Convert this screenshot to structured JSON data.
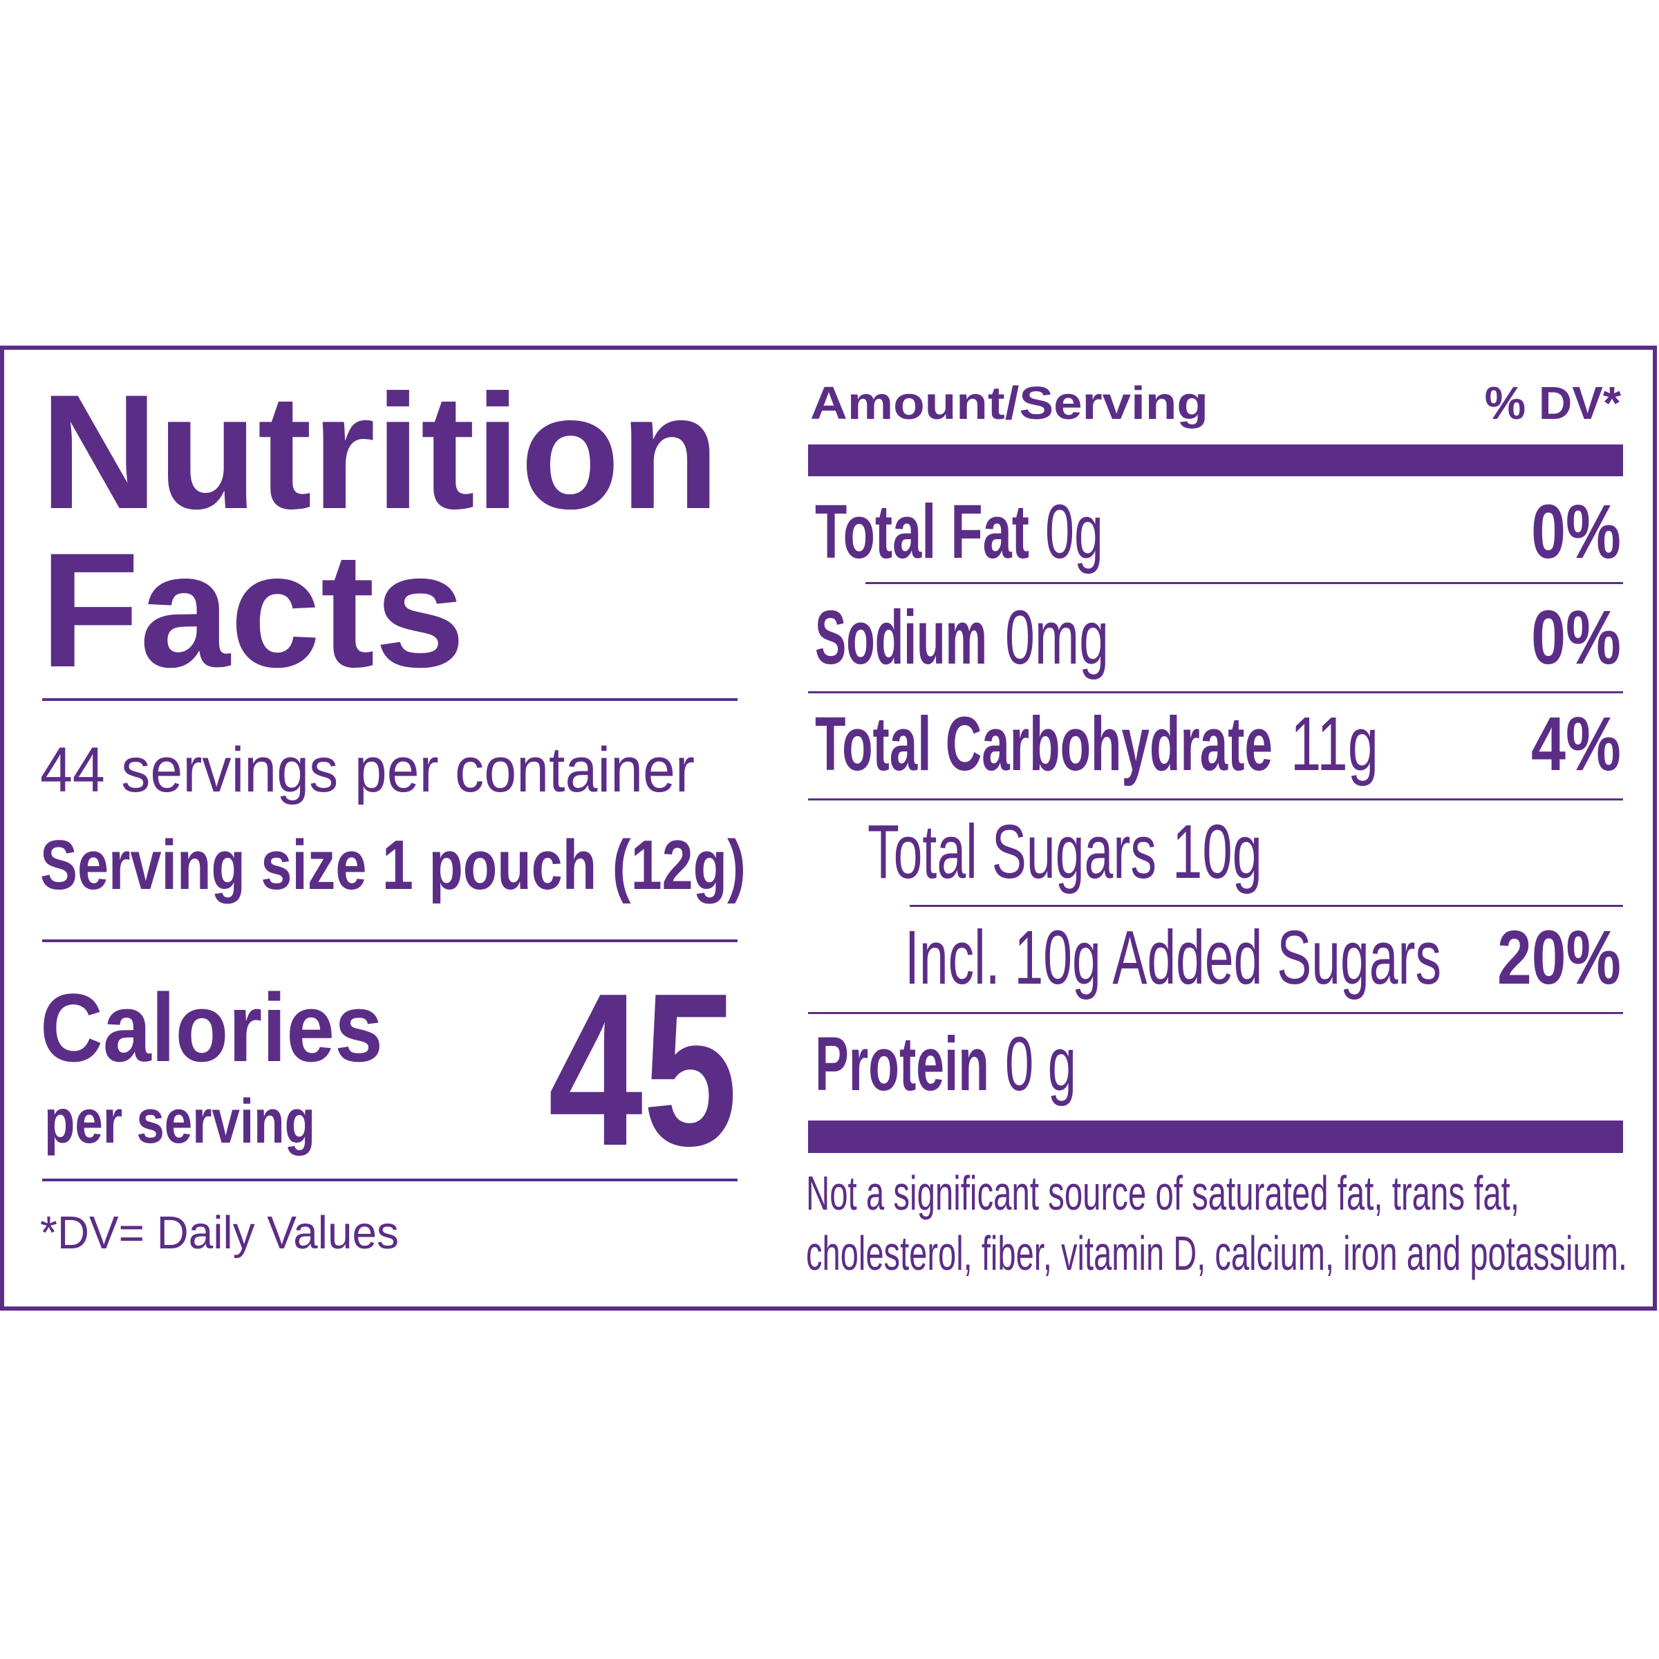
{
  "left": {
    "title": [
      "Nutrition",
      "Facts"
    ],
    "servings": "44 servings per container",
    "serving_size": "Serving size 1 pouch (12g)",
    "calories_label": "Calories",
    "calories_sub": "per serving",
    "calories_value": "45",
    "dv_note": "*DV= Daily Values"
  },
  "right": {
    "header": {
      "amount": "Amount/Serving",
      "dv": "% DV*"
    },
    "rows": [
      {
        "name": "Total Fat",
        "amount": "0g",
        "dv": "0%"
      },
      {
        "name": "Sodium",
        "amount": "0mg",
        "dv": "0%"
      },
      {
        "name": "Total Carbohydrate",
        "amount": "11g",
        "dv": "4%"
      },
      {
        "name": "Total Sugars",
        "amount": "10g"
      },
      {
        "name": "Incl. 10g Added Sugars",
        "dv": "20%"
      },
      {
        "name": "Protein",
        "amount": "0 g"
      }
    ],
    "footnote": [
      "Not a significant source of saturated fat, trans fat,",
      "cholesterol, fiber, vitamin D, calcium, iron and potassium."
    ]
  }
}
